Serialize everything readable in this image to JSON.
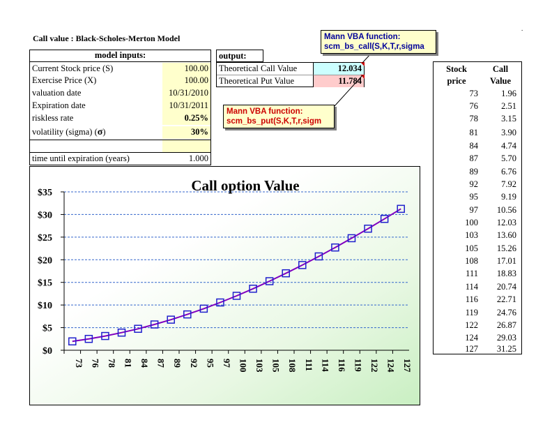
{
  "sheet_title": "Call value :  Black-Scholes-Merton Model",
  "corner_mark": ".",
  "inputs": {
    "header": "model inputs:",
    "rows": [
      {
        "label": "Current Stock price (S)",
        "value": "100.00"
      },
      {
        "label": "Exercise Price (X)",
        "value": "100.00"
      },
      {
        "label": "valuation date",
        "value": "10/31/2010"
      },
      {
        "label": "Expiration date",
        "value": "10/31/2011"
      },
      {
        "label": "riskless rate",
        "value": "0.25%"
      },
      {
        "label": "volatility (sigma) (",
        "sigma": "σ",
        "label_end": ")",
        "value": "30%"
      }
    ],
    "time_label": "time until expiration (years)",
    "time_value": "1.000"
  },
  "output": {
    "header": "output:",
    "call_label": "Theoretical Call Value",
    "call_value": "12.034",
    "put_label": "Theoretical Put Value",
    "put_value": "11.784"
  },
  "callouts": {
    "call": {
      "line1": "Mann VBA function:",
      "line2": "scm_bs_call(S,K,T,r,sigma"
    },
    "put": {
      "line1": "Mann VBA function:",
      "line2": "scm_bs_put(S,K,T,r,sigm"
    }
  },
  "price_table": {
    "col1_header_1": "Stock",
    "col1_header_2": "price",
    "col2_header_1": "Call",
    "col2_header_2": "Value",
    "rows": [
      [
        "73",
        "1.96"
      ],
      [
        "76",
        "2.51"
      ],
      [
        "78",
        "3.15"
      ],
      [
        "81",
        "3.90"
      ],
      [
        "84",
        "4.74"
      ],
      [
        "87",
        "5.70"
      ],
      [
        "89",
        "6.76"
      ],
      [
        "92",
        "7.92"
      ],
      [
        "95",
        "9.19"
      ],
      [
        "97",
        "10.56"
      ],
      [
        "100",
        "12.03"
      ],
      [
        "103",
        "13.60"
      ],
      [
        "105",
        "15.26"
      ],
      [
        "108",
        "17.01"
      ],
      [
        "111",
        "18.83"
      ],
      [
        "114",
        "20.74"
      ],
      [
        "116",
        "22.71"
      ],
      [
        "119",
        "24.76"
      ],
      [
        "122",
        "26.87"
      ],
      [
        "124",
        "29.03"
      ],
      [
        "127",
        "31.25"
      ]
    ]
  },
  "chart_data": {
    "type": "line",
    "title": "Call option Value",
    "categories": [
      "73",
      "76",
      "78",
      "81",
      "84",
      "87",
      "89",
      "92",
      "95",
      "97",
      "100",
      "103",
      "105",
      "108",
      "111",
      "114",
      "116",
      "119",
      "122",
      "124",
      "127"
    ],
    "series": [
      {
        "values": [
          1.96,
          2.51,
          3.15,
          3.9,
          4.74,
          5.7,
          6.76,
          7.92,
          9.19,
          10.56,
          12.03,
          13.6,
          15.26,
          17.01,
          18.83,
          20.74,
          22.71,
          24.76,
          26.87,
          29.03,
          31.25
        ]
      }
    ],
    "ylim": [
      0,
      35
    ],
    "yticks": [
      "$0",
      "$5",
      "$10",
      "$15",
      "$20",
      "$25",
      "$30",
      "$35"
    ],
    "grid": true,
    "line_color": "#7f00bf",
    "marker_color": "#1f1fcc",
    "grid_color": "#3366cc"
  }
}
